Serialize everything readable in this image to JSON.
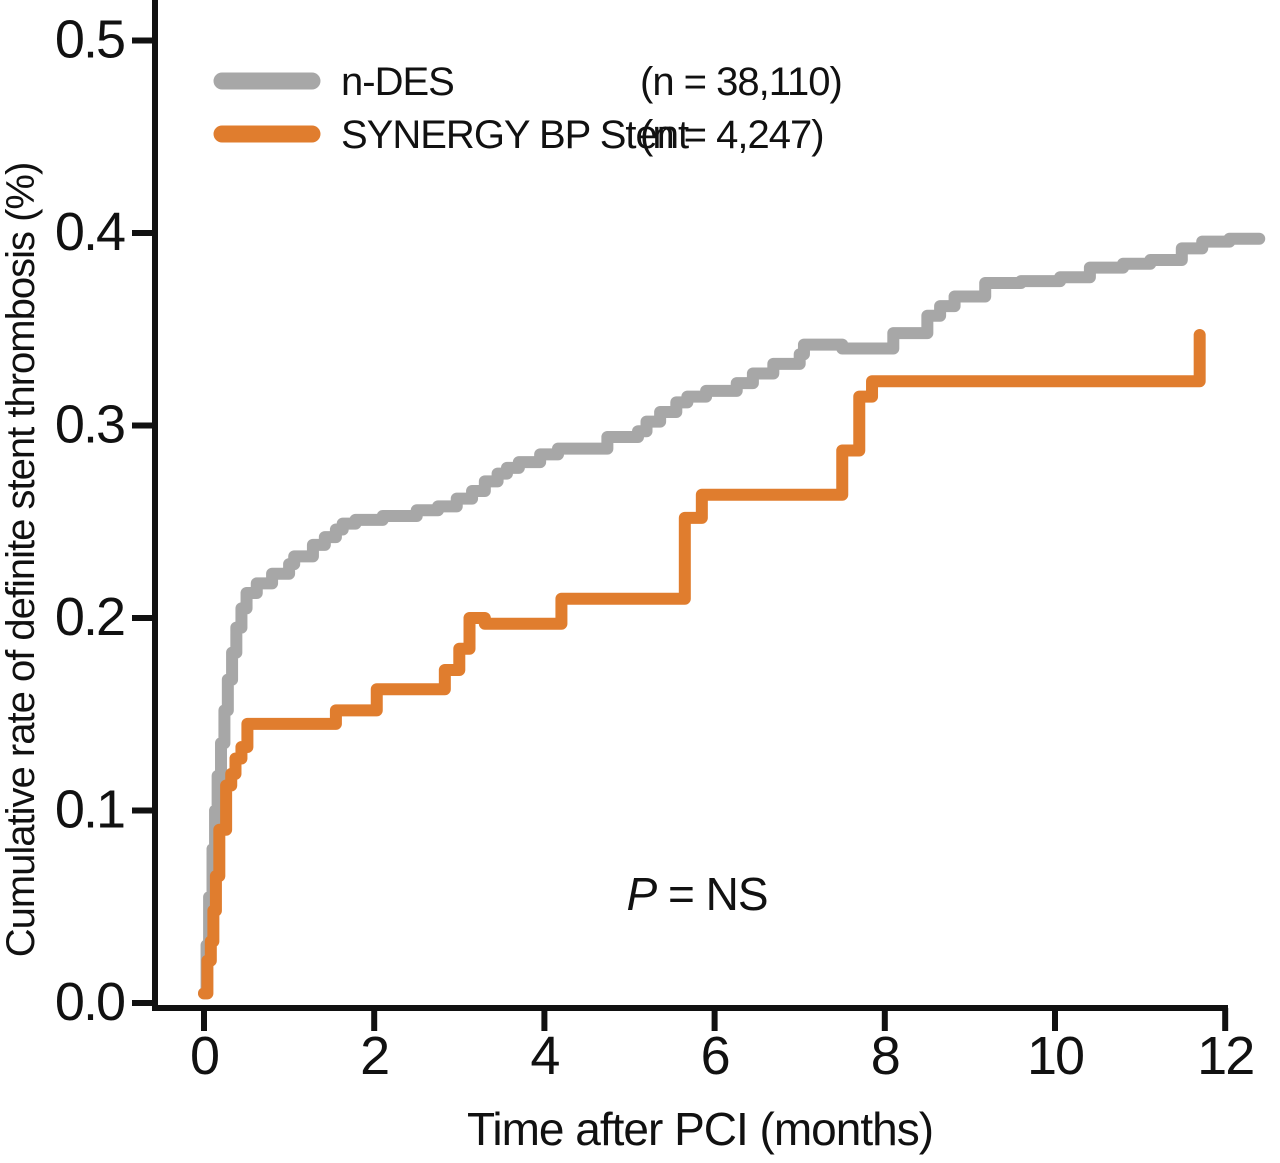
{
  "figure": {
    "x_axis_title": "Time after PCI (months)",
    "y_axis_title": "Cumulative rate of definite stent thrombosis (%)",
    "annotation": {
      "p": "P",
      "rest": " = NS"
    },
    "colors": {
      "n_des": "#a7a7a7",
      "synergy": "#e07d2e",
      "axis": "#111111"
    }
  },
  "legend": [
    {
      "label": "n-DES",
      "count": "(n = 38,110)",
      "color": "#a7a7a7"
    },
    {
      "label": "SYNERGY BP Stent",
      "count": "(n = 4,247)",
      "color": "#e07d2e"
    }
  ],
  "chart_data": {
    "type": "line",
    "subtype": "kaplan-meier-step",
    "title": "",
    "xlabel": "Time after PCI (months)",
    "ylabel": "Cumulative rate of definite stent thrombosis (%)",
    "xlim": [
      0,
      12.5
    ],
    "ylim": [
      0,
      0.5
    ],
    "x_ticks": [
      "0",
      "2",
      "4",
      "6",
      "8",
      "10",
      "12"
    ],
    "x_tick_values": [
      0,
      2,
      4,
      6,
      8,
      10,
      12
    ],
    "y_ticks": [
      "0.0",
      "0.1",
      "0.2",
      "0.3",
      "0.4",
      "0.5"
    ],
    "y_tick_values": [
      0.0,
      0.1,
      0.2,
      0.3,
      0.4,
      0.5
    ],
    "grid": false,
    "legend_position": "inside-top-left",
    "annotation": "P = NS",
    "series": [
      {
        "name": "n-DES",
        "n": "38,110",
        "color": "#a7a7a7",
        "points": [
          [
            0,
            0.005
          ],
          [
            0.03,
            0.03
          ],
          [
            0.06,
            0.055
          ],
          [
            0.1,
            0.08
          ],
          [
            0.13,
            0.1
          ],
          [
            0.16,
            0.118
          ],
          [
            0.2,
            0.135
          ],
          [
            0.24,
            0.152
          ],
          [
            0.28,
            0.168
          ],
          [
            0.33,
            0.182
          ],
          [
            0.38,
            0.195
          ],
          [
            0.44,
            0.205
          ],
          [
            0.5,
            0.213
          ],
          [
            0.62,
            0.218
          ],
          [
            0.8,
            0.223
          ],
          [
            1.0,
            0.228
          ],
          [
            1.06,
            0.232
          ],
          [
            1.28,
            0.238
          ],
          [
            1.42,
            0.242
          ],
          [
            1.55,
            0.246
          ],
          [
            1.63,
            0.249
          ],
          [
            1.78,
            0.251
          ],
          [
            2.1,
            0.253
          ],
          [
            2.5,
            0.256
          ],
          [
            2.75,
            0.258
          ],
          [
            2.97,
            0.262
          ],
          [
            3.15,
            0.266
          ],
          [
            3.3,
            0.271
          ],
          [
            3.45,
            0.275
          ],
          [
            3.56,
            0.278
          ],
          [
            3.7,
            0.281
          ],
          [
            3.95,
            0.285
          ],
          [
            4.16,
            0.288
          ],
          [
            4.74,
            0.294
          ],
          [
            5.1,
            0.297
          ],
          [
            5.2,
            0.302
          ],
          [
            5.36,
            0.307
          ],
          [
            5.55,
            0.312
          ],
          [
            5.68,
            0.315
          ],
          [
            5.9,
            0.318
          ],
          [
            6.26,
            0.322
          ],
          [
            6.45,
            0.327
          ],
          [
            6.69,
            0.332
          ],
          [
            7.0,
            0.337
          ],
          [
            7.05,
            0.342
          ],
          [
            7.5,
            0.34
          ],
          [
            8.1,
            0.348
          ],
          [
            8.5,
            0.357
          ],
          [
            8.65,
            0.362
          ],
          [
            8.82,
            0.367
          ],
          [
            9.18,
            0.374
          ],
          [
            9.6,
            0.375
          ],
          [
            10.06,
            0.377
          ],
          [
            10.41,
            0.382
          ],
          [
            10.8,
            0.384
          ],
          [
            11.12,
            0.386
          ],
          [
            11.49,
            0.392
          ],
          [
            11.73,
            0.3955
          ],
          [
            12.05,
            0.397
          ],
          [
            12.4,
            0.397
          ]
        ]
      },
      {
        "name": "SYNERGY BP Stent",
        "n": "4,247",
        "color": "#e07d2e",
        "points": [
          [
            0,
            0.005
          ],
          [
            0.04,
            0.022
          ],
          [
            0.08,
            0.032
          ],
          [
            0.11,
            0.048
          ],
          [
            0.14,
            0.066
          ],
          [
            0.18,
            0.09
          ],
          [
            0.26,
            0.113
          ],
          [
            0.32,
            0.119
          ],
          [
            0.37,
            0.127
          ],
          [
            0.44,
            0.133
          ],
          [
            0.51,
            0.145
          ],
          [
            1.55,
            0.152
          ],
          [
            2.03,
            0.163
          ],
          [
            2.83,
            0.173
          ],
          [
            3.0,
            0.184
          ],
          [
            3.12,
            0.2
          ],
          [
            3.3,
            0.197
          ],
          [
            4.2,
            0.21
          ],
          [
            5.65,
            0.252
          ],
          [
            5.85,
            0.264
          ],
          [
            7.5,
            0.287
          ],
          [
            7.7,
            0.315
          ],
          [
            7.85,
            0.323
          ],
          [
            11.7,
            0.347
          ]
        ]
      }
    ]
  }
}
